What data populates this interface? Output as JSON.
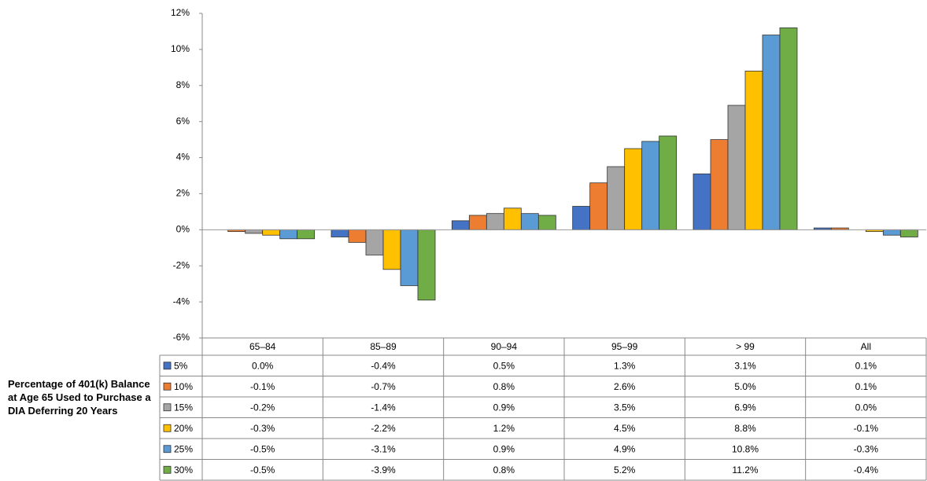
{
  "chart_data": {
    "type": "bar",
    "side_label": "Percentage of 401(k) Balance at Age 65 Used to Purchase a DIA Deferring 20 Years",
    "categories": [
      "65–84",
      "85–89",
      "90–94",
      "95–99",
      "> 99",
      "All"
    ],
    "ylim": [
      -6,
      12
    ],
    "yticks": [
      {
        "value": -6,
        "label": "-6%"
      },
      {
        "value": -4,
        "label": "-4%"
      },
      {
        "value": -2,
        "label": "-2%"
      },
      {
        "value": 0,
        "label": "0%"
      },
      {
        "value": 2,
        "label": "2%"
      },
      {
        "value": 4,
        "label": "4%"
      },
      {
        "value": 6,
        "label": "6%"
      },
      {
        "value": 8,
        "label": "8%"
      },
      {
        "value": 10,
        "label": "10%"
      },
      {
        "value": 12,
        "label": "12%"
      }
    ],
    "series": [
      {
        "name": "5%",
        "color": "#4472c4",
        "values": [
          0.0,
          -0.4,
          0.5,
          1.3,
          3.1,
          0.1
        ],
        "value_labels": [
          "0.0%",
          "-0.4%",
          "0.5%",
          "1.3%",
          "3.1%",
          "0.1%"
        ]
      },
      {
        "name": "10%",
        "color": "#ed7d31",
        "values": [
          -0.1,
          -0.7,
          0.8,
          2.6,
          5.0,
          0.1
        ],
        "value_labels": [
          "-0.1%",
          "-0.7%",
          "0.8%",
          "2.6%",
          "5.0%",
          "0.1%"
        ]
      },
      {
        "name": "15%",
        "color": "#a5a5a5",
        "values": [
          -0.2,
          -1.4,
          0.9,
          3.5,
          6.9,
          0.0
        ],
        "value_labels": [
          "-0.2%",
          "-1.4%",
          "0.9%",
          "3.5%",
          "6.9%",
          "0.0%"
        ]
      },
      {
        "name": "20%",
        "color": "#ffc000",
        "values": [
          -0.3,
          -2.2,
          1.2,
          4.5,
          8.8,
          -0.1
        ],
        "value_labels": [
          "-0.3%",
          "-2.2%",
          "1.2%",
          "4.5%",
          "8.8%",
          "-0.1%"
        ]
      },
      {
        "name": "25%",
        "color": "#5b9bd5",
        "values": [
          -0.5,
          -3.1,
          0.9,
          4.9,
          10.8,
          -0.3
        ],
        "value_labels": [
          "-0.5%",
          "-3.1%",
          "0.9%",
          "4.9%",
          "10.8%",
          "-0.3%"
        ]
      },
      {
        "name": "30%",
        "color": "#70ad47",
        "values": [
          -0.5,
          -3.9,
          0.8,
          5.2,
          11.2,
          -0.4
        ],
        "value_labels": [
          "-0.5%",
          "-3.9%",
          "0.8%",
          "5.2%",
          "11.2%",
          "-0.4%"
        ]
      }
    ]
  }
}
